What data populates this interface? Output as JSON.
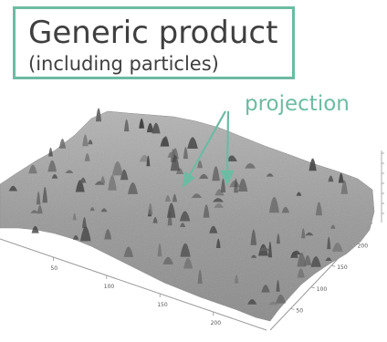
{
  "title": {
    "main": "Generic product",
    "sub": "(including particles)"
  },
  "annotation": {
    "label": "projection",
    "color": "#6dbba3"
  },
  "surface_plot": {
    "x_ticks": [
      "50",
      "100",
      "150",
      "200"
    ],
    "y_ticks": [
      "50",
      "100",
      "150",
      "200"
    ]
  }
}
